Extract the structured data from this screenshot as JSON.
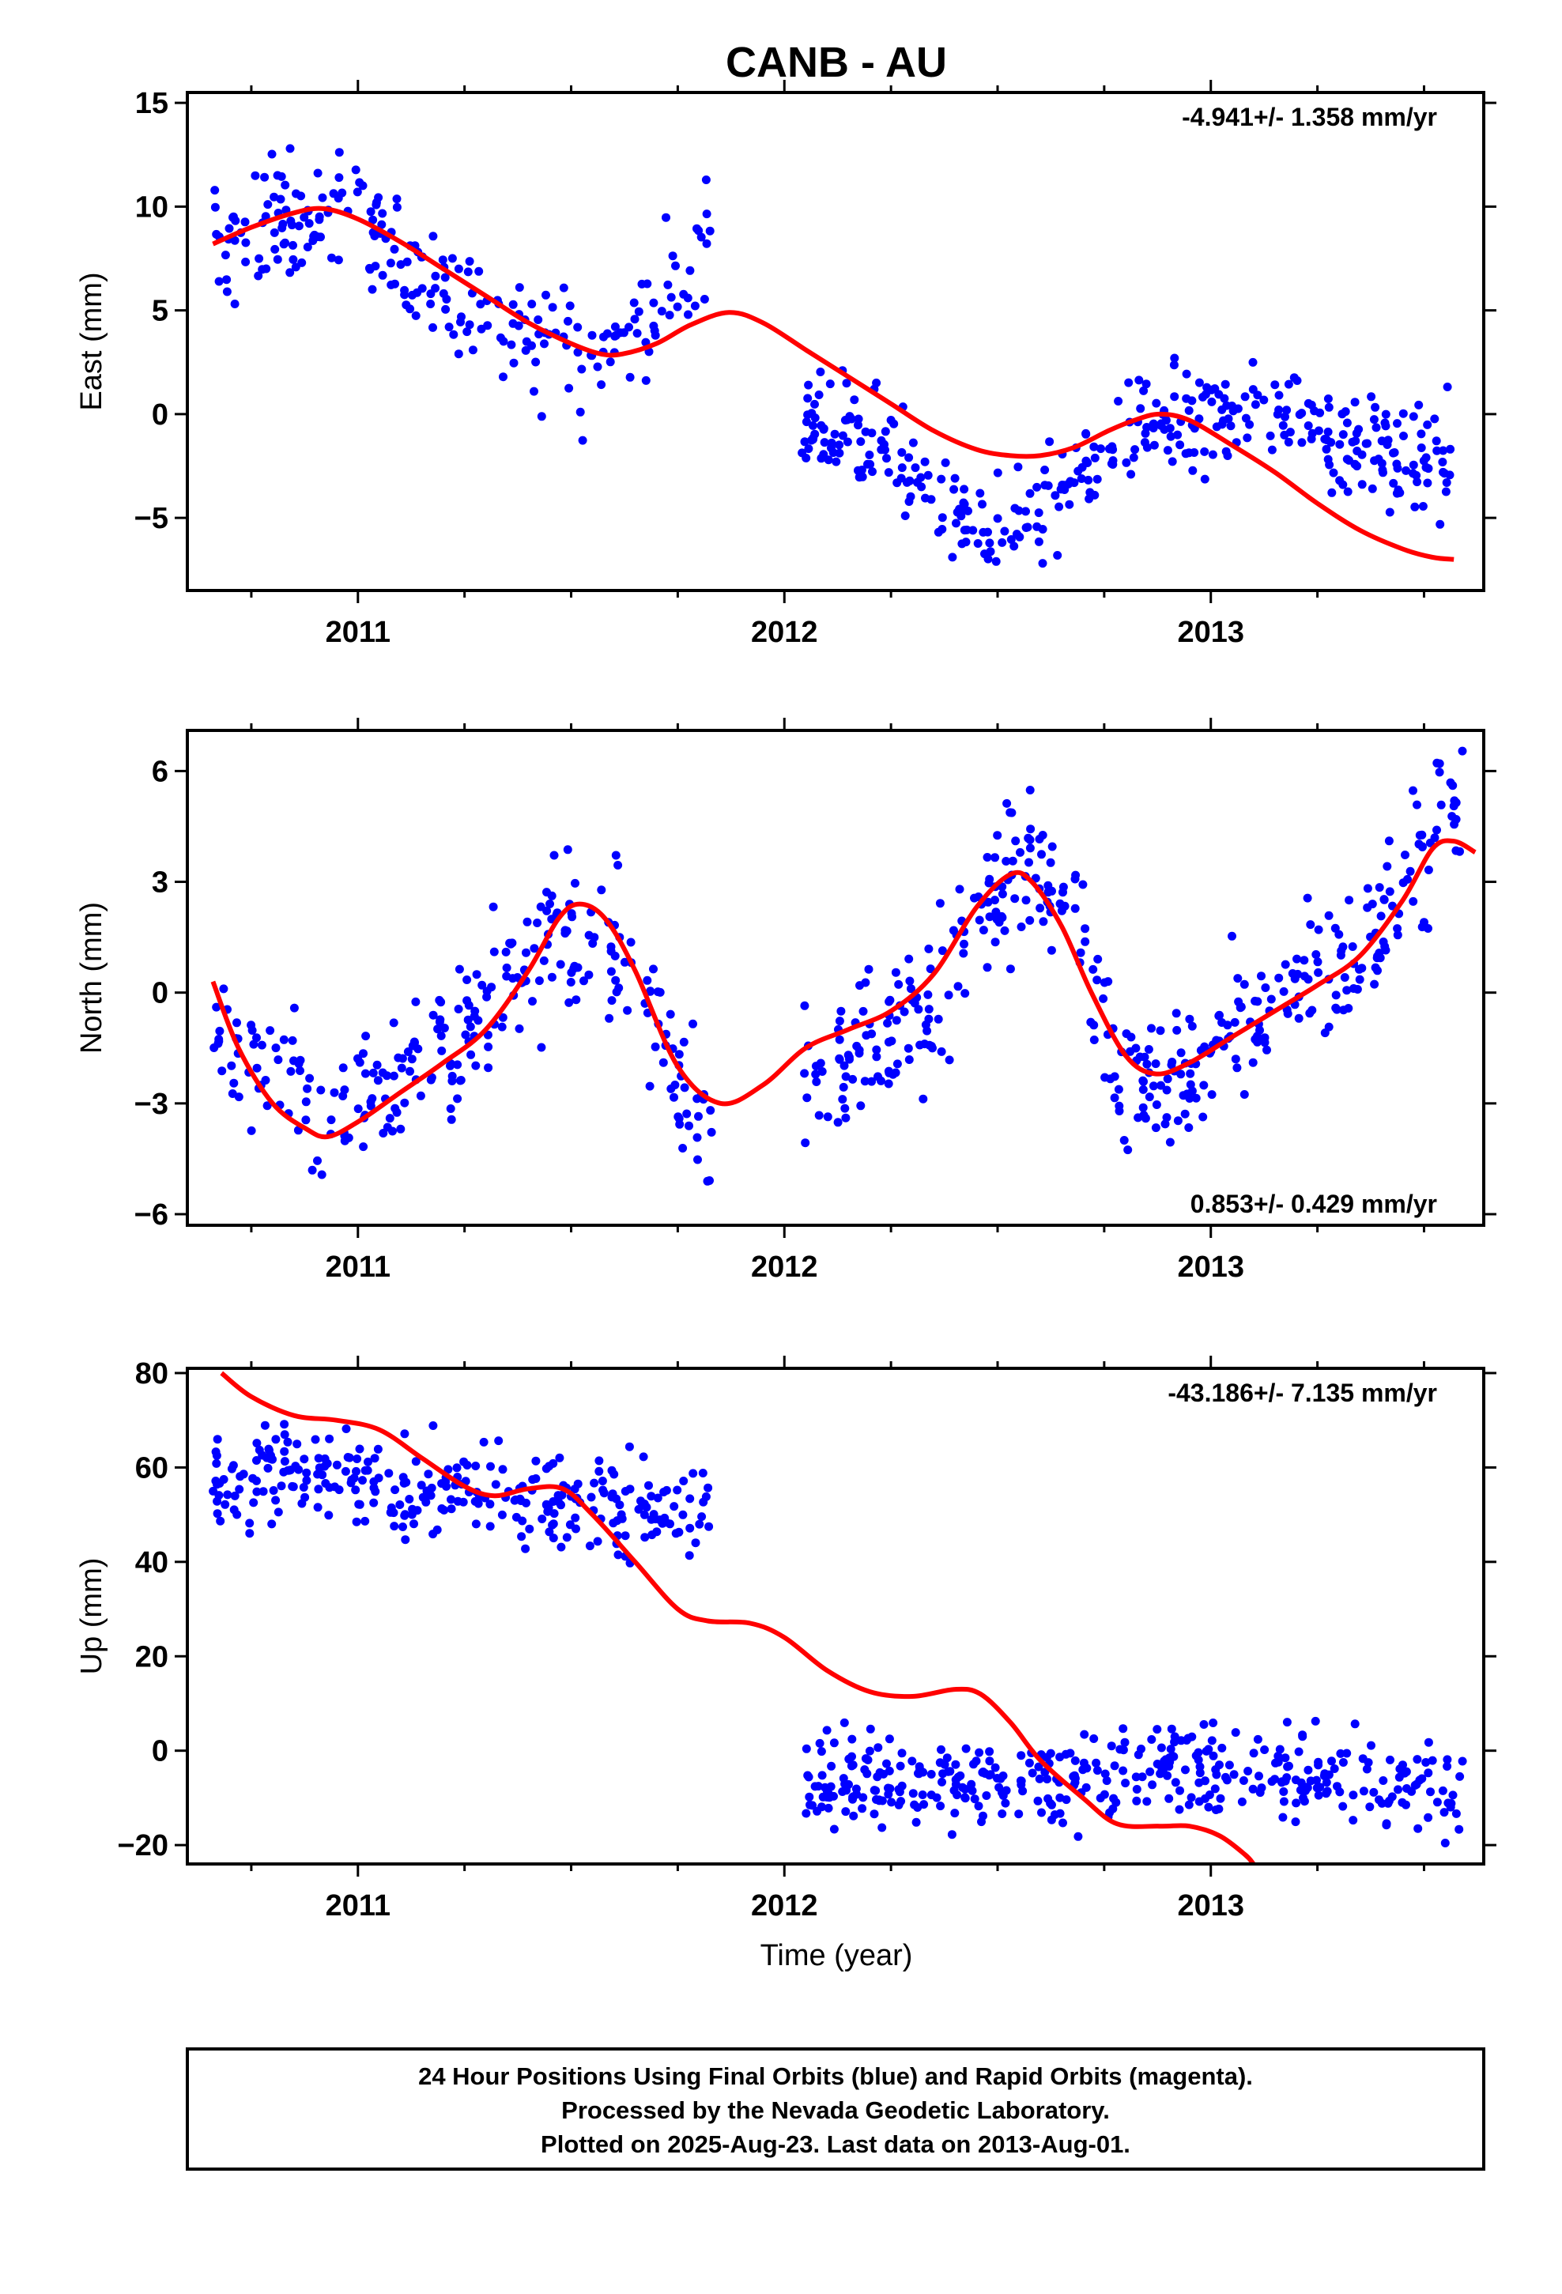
{
  "chart_data": {
    "type": "scatter",
    "title": "CANB - AU",
    "xlabel": "Time (year)",
    "xlim": [
      2010.6,
      2013.64
    ],
    "x_ticks": [
      2011,
      2012,
      2013
    ],
    "x_tick_labels": [
      "2011",
      "2012",
      "2013"
    ],
    "x_minor_ticks": [
      2010.75,
      2011.25,
      2011.5,
      2011.75,
      2012.25,
      2012.5,
      2012.75,
      2013.25,
      2013.5
    ],
    "colors": {
      "points": "#0000ff",
      "model": "#ff0000",
      "axes": "#000000"
    },
    "legend": "none",
    "grid": false,
    "panels": [
      {
        "id": "east",
        "ylabel": "East (mm)",
        "ylim": [
          -8.5,
          15.5
        ],
        "y_ticks": [
          -5,
          0,
          5,
          10,
          15
        ],
        "y_tick_labels": [
          "−5",
          "0",
          "5",
          "10",
          "15"
        ],
        "rate_text": "-4.941+/- 1.358 mm/yr",
        "rate_position": "top-right",
        "model": [
          [
            2010.66,
            8.2
          ],
          [
            2010.75,
            9.0
          ],
          [
            2010.85,
            9.7
          ],
          [
            2010.92,
            9.9
          ],
          [
            2011.0,
            9.4
          ],
          [
            2011.1,
            8.3
          ],
          [
            2011.2,
            7.0
          ],
          [
            2011.3,
            5.7
          ],
          [
            2011.4,
            4.4
          ],
          [
            2011.5,
            3.4
          ],
          [
            2011.57,
            2.9
          ],
          [
            2011.62,
            2.9
          ],
          [
            2011.7,
            3.4
          ],
          [
            2011.78,
            4.3
          ],
          [
            2011.87,
            4.9
          ],
          [
            2011.95,
            4.4
          ],
          [
            2012.05,
            3.1
          ],
          [
            2012.15,
            1.8
          ],
          [
            2012.25,
            0.5
          ],
          [
            2012.35,
            -0.8
          ],
          [
            2012.45,
            -1.7
          ],
          [
            2012.53,
            -2.0
          ],
          [
            2012.6,
            -2.0
          ],
          [
            2012.68,
            -1.6
          ],
          [
            2012.76,
            -0.8
          ],
          [
            2012.82,
            -0.3
          ],
          [
            2012.88,
            0.0
          ],
          [
            2012.95,
            -0.3
          ],
          [
            2013.05,
            -1.5
          ],
          [
            2013.15,
            -2.8
          ],
          [
            2013.25,
            -4.3
          ],
          [
            2013.35,
            -5.6
          ],
          [
            2013.45,
            -6.5
          ],
          [
            2013.52,
            -6.9
          ],
          [
            2013.57,
            -7.0
          ]
        ],
        "segments": [
          {
            "x0": 2010.66,
            "x1": 2011.83,
            "anchors": [
              [
                2010.66,
                7.5
              ],
              [
                2010.8,
                9.0
              ],
              [
                2010.95,
                10.3
              ],
              [
                2011.1,
                7.8
              ],
              [
                2011.25,
                5.5
              ],
              [
                2011.4,
                3.4
              ],
              [
                2011.55,
                2.7
              ],
              [
                2011.68,
                4.5
              ],
              [
                2011.78,
                7.5
              ],
              [
                2011.83,
                9.0
              ]
            ],
            "n": 240,
            "sd": 1.5,
            "seed": 11
          },
          {
            "x0": 2012.04,
            "x1": 2013.57,
            "anchors": [
              [
                2012.04,
                -0.5
              ],
              [
                2012.2,
                -1.3
              ],
              [
                2012.35,
                -3.5
              ],
              [
                2012.5,
                -6.0
              ],
              [
                2012.58,
                -4.8
              ],
              [
                2012.7,
                -2.5
              ],
              [
                2012.82,
                -0.5
              ],
              [
                2013.0,
                0.0
              ],
              [
                2013.15,
                0.5
              ],
              [
                2013.3,
                -1.0
              ],
              [
                2013.45,
                -2.6
              ],
              [
                2013.57,
                -1.5
              ]
            ],
            "n": 380,
            "sd": 1.3,
            "seed": 23
          }
        ]
      },
      {
        "id": "north",
        "ylabel": "North (mm)",
        "ylim": [
          -6.3,
          7.1
        ],
        "y_ticks": [
          -6,
          -3,
          0,
          3,
          6
        ],
        "y_tick_labels": [
          "−6",
          "−3",
          "0",
          "3",
          "6"
        ],
        "rate_text": "0.853+/- 0.429 mm/yr",
        "rate_position": "bottom-right",
        "model": [
          [
            2010.66,
            0.3
          ],
          [
            2010.72,
            -1.5
          ],
          [
            2010.8,
            -3.0
          ],
          [
            2010.88,
            -3.7
          ],
          [
            2010.93,
            -3.9
          ],
          [
            2011.0,
            -3.5
          ],
          [
            2011.1,
            -2.7
          ],
          [
            2011.2,
            -1.9
          ],
          [
            2011.3,
            -1.0
          ],
          [
            2011.4,
            0.6
          ],
          [
            2011.47,
            2.0
          ],
          [
            2011.52,
            2.4
          ],
          [
            2011.58,
            2.0
          ],
          [
            2011.65,
            0.6
          ],
          [
            2011.75,
            -2.0
          ],
          [
            2011.85,
            -3.0
          ],
          [
            2011.95,
            -2.5
          ],
          [
            2012.05,
            -1.5
          ],
          [
            2012.15,
            -1.0
          ],
          [
            2012.25,
            -0.5
          ],
          [
            2012.35,
            0.5
          ],
          [
            2012.45,
            2.3
          ],
          [
            2012.53,
            3.2
          ],
          [
            2012.58,
            3.0
          ],
          [
            2012.65,
            1.8
          ],
          [
            2012.72,
            0.0
          ],
          [
            2012.8,
            -1.7
          ],
          [
            2012.87,
            -2.2
          ],
          [
            2012.95,
            -1.9
          ],
          [
            2013.05,
            -1.2
          ],
          [
            2013.15,
            -0.5
          ],
          [
            2013.25,
            0.2
          ],
          [
            2013.35,
            1.0
          ],
          [
            2013.45,
            2.5
          ],
          [
            2013.52,
            3.9
          ],
          [
            2013.57,
            4.1
          ],
          [
            2013.62,
            3.8
          ]
        ],
        "segments": [
          {
            "x0": 2010.66,
            "x1": 2011.83,
            "anchors": [
              [
                2010.66,
                -1.0
              ],
              [
                2010.75,
                -2.0
              ],
              [
                2010.85,
                -3.0
              ],
              [
                2010.95,
                -3.5
              ],
              [
                2011.1,
                -2.5
              ],
              [
                2011.2,
                -1.5
              ],
              [
                2011.35,
                0.0
              ],
              [
                2011.45,
                1.5
              ],
              [
                2011.55,
                1.5
              ],
              [
                2011.65,
                1.0
              ],
              [
                2011.75,
                -2.0
              ],
              [
                2011.83,
                -3.5
              ]
            ],
            "n": 270,
            "sd": 1.0,
            "seed": 37
          },
          {
            "x0": 2012.04,
            "x1": 2013.6,
            "anchors": [
              [
                2012.04,
                -2.5
              ],
              [
                2012.15,
                -1.8
              ],
              [
                2012.3,
                -0.8
              ],
              [
                2012.4,
                1.0
              ],
              [
                2012.5,
                3.0
              ],
              [
                2012.6,
                3.2
              ],
              [
                2012.7,
                1.0
              ],
              [
                2012.8,
                -2.5
              ],
              [
                2012.9,
                -2.5
              ],
              [
                2013.05,
                -1.0
              ],
              [
                2013.2,
                0.0
              ],
              [
                2013.35,
                1.0
              ],
              [
                2013.45,
                3.0
              ],
              [
                2013.55,
                5.0
              ],
              [
                2013.6,
                5.5
              ]
            ],
            "n": 400,
            "sd": 1.0,
            "seed": 53
          }
        ]
      },
      {
        "id": "up",
        "ylabel": "Up (mm)",
        "ylim": [
          -24,
          81
        ],
        "y_ticks": [
          -20,
          0,
          20,
          40,
          60,
          80
        ],
        "y_tick_labels": [
          "−20",
          "0",
          "20",
          "40",
          "60",
          "80"
        ],
        "rate_text": "-43.186+/- 7.135 mm/yr",
        "rate_position": "top-right",
        "model": [
          [
            2010.68,
            80
          ],
          [
            2010.75,
            75
          ],
          [
            2010.85,
            71
          ],
          [
            2010.95,
            70
          ],
          [
            2011.05,
            68
          ],
          [
            2011.15,
            62
          ],
          [
            2011.25,
            56
          ],
          [
            2011.32,
            54
          ],
          [
            2011.4,
            55.5
          ],
          [
            2011.48,
            55.5
          ],
          [
            2011.55,
            50
          ],
          [
            2011.65,
            40
          ],
          [
            2011.75,
            30
          ],
          [
            2011.82,
            27.5
          ],
          [
            2011.92,
            27
          ],
          [
            2012.0,
            24
          ],
          [
            2012.1,
            17
          ],
          [
            2012.2,
            12.5
          ],
          [
            2012.3,
            11.5
          ],
          [
            2012.4,
            13
          ],
          [
            2012.46,
            12
          ],
          [
            2012.53,
            6
          ],
          [
            2012.6,
            -2
          ],
          [
            2012.7,
            -10
          ],
          [
            2012.78,
            -15.5
          ],
          [
            2012.88,
            -16
          ],
          [
            2012.95,
            -16
          ],
          [
            2013.02,
            -18
          ],
          [
            2013.08,
            -22
          ],
          [
            2013.1,
            -24
          ]
        ],
        "segments": [
          {
            "x0": 2010.66,
            "x1": 2011.83,
            "anchors": [
              [
                2010.66,
                57
              ],
              [
                2010.9,
                60
              ],
              [
                2011.1,
                55
              ],
              [
                2011.3,
                55
              ],
              [
                2011.5,
                52
              ],
              [
                2011.7,
                50
              ],
              [
                2011.83,
                54
              ]
            ],
            "n": 300,
            "sd": 5.0,
            "seed": 71
          },
          {
            "x0": 2012.04,
            "x1": 2013.6,
            "anchors": [
              [
                2012.04,
                -5
              ],
              [
                2012.3,
                -8
              ],
              [
                2012.6,
                -7
              ],
              [
                2012.9,
                -3
              ],
              [
                2013.2,
                -5
              ],
              [
                2013.6,
                -8
              ]
            ],
            "n": 400,
            "sd": 5.0,
            "seed": 89
          }
        ]
      }
    ]
  },
  "footer": {
    "line1": "24 Hour Positions Using Final Orbits (blue) and Rapid Orbits (magenta).",
    "line2": "Processed by the Nevada Geodetic Laboratory.",
    "line3": "Plotted on 2025-Aug-23. Last data on 2013-Aug-01."
  }
}
